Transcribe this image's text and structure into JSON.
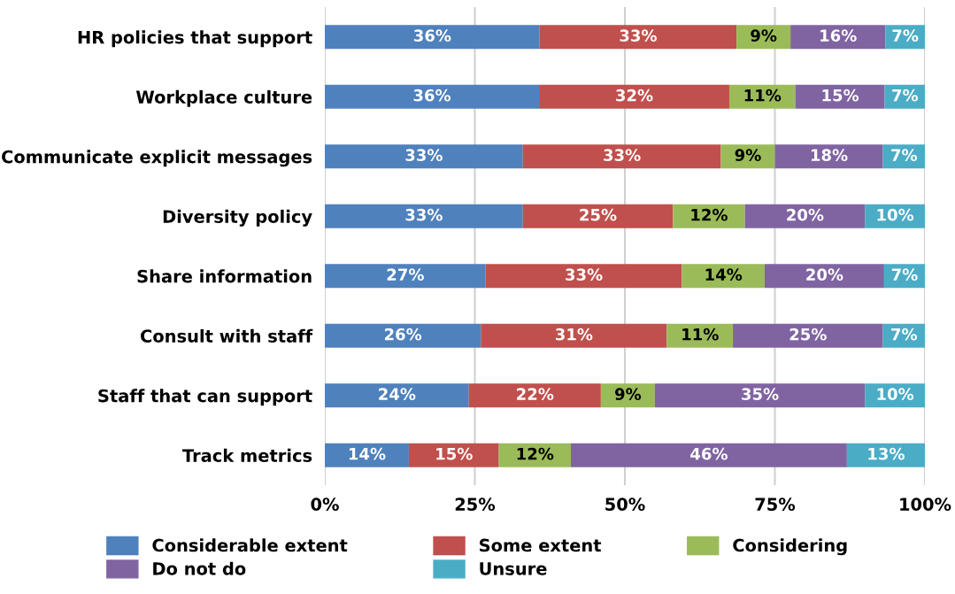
{
  "chart_data": {
    "type": "bar",
    "orientation": "horizontal",
    "stacked": true,
    "categories": [
      "HR policies that support",
      "Workplace culture",
      "Communicate explicit messages",
      "Diversity policy",
      "Share information",
      "Consult with staff",
      "Staff that can support",
      "Track metrics"
    ],
    "series": [
      {
        "name": "Considerable extent",
        "color": "#4f81bd",
        "values": [
          35.8,
          35.7,
          33,
          33,
          26.8,
          26,
          24,
          14
        ],
        "value_labels": [
          "36%",
          "36%",
          "33%",
          "33%",
          "27%",
          "26%",
          "24%",
          "14%"
        ]
      },
      {
        "name": "Some extent",
        "color": "#c0504d",
        "values": [
          32.8,
          31.7,
          33,
          25,
          32.7,
          31,
          22,
          15
        ],
        "value_labels": [
          "33%",
          "32%",
          "33%",
          "25%",
          "33%",
          "31%",
          "22%",
          "15%"
        ]
      },
      {
        "name": "Considering",
        "color": "#9bbb59",
        "values": [
          9,
          11,
          9,
          12,
          13.8,
          11,
          9,
          12
        ],
        "value_labels": [
          "9%",
          "11%",
          "9%",
          "12%",
          "14%",
          "11%",
          "9%",
          "12%"
        ]
      },
      {
        "name": "Do not do",
        "color": "#8064a2",
        "values": [
          15.8,
          14.9,
          18,
          20,
          19.9,
          25,
          35,
          46
        ],
        "value_labels": [
          "16%",
          "15%",
          "18%",
          "20%",
          "20%",
          "25%",
          "35%",
          "46%"
        ]
      },
      {
        "name": "Unsure",
        "color": "#4bacc6",
        "values": [
          6.6,
          6.7,
          7,
          10,
          6.8,
          7,
          10,
          13
        ],
        "value_labels": [
          "7%",
          "7%",
          "7%",
          "10%",
          "7%",
          "7%",
          "10%",
          "13%"
        ]
      }
    ],
    "xlim": [
      0,
      100
    ],
    "xticks": [
      {
        "value": 0,
        "label": "0%"
      },
      {
        "value": 25,
        "label": "25%"
      },
      {
        "value": 50,
        "label": "50%"
      },
      {
        "value": 75,
        "label": "75%"
      },
      {
        "value": 100,
        "label": "100%"
      }
    ],
    "grid": "x",
    "legend": "bottom"
  }
}
